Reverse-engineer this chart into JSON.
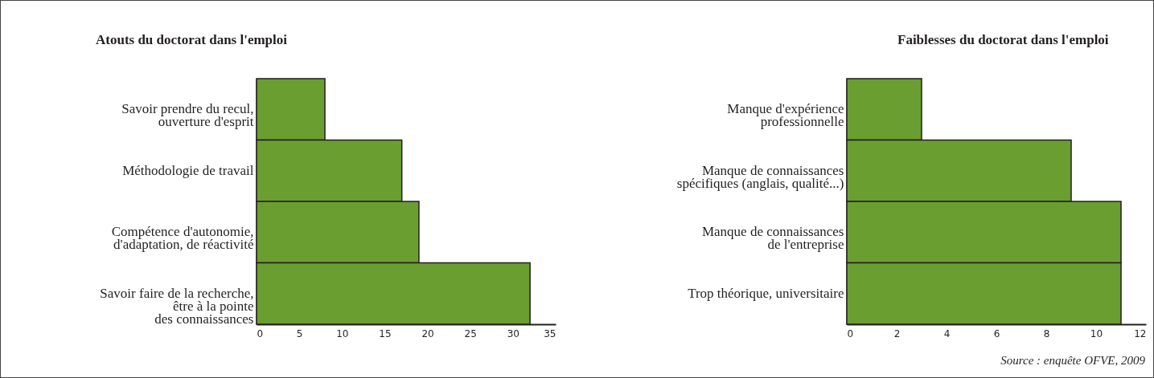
{
  "chart_data": [
    {
      "type": "bar",
      "orientation": "horizontal",
      "title": "Atouts du doctorat dans l'emploi",
      "categories": [
        "Savoir prendre du recul,\nouverture d'esprit",
        "Méthodologie de travail",
        "Compétence d'autonomie,\nd'adaptation, de réactivité",
        "Savoir faire de la recherche,\nêtre à la pointe\ndes connaissances"
      ],
      "values": [
        8,
        17,
        19,
        32
      ],
      "color": "#6b9e31",
      "xlim": [
        0,
        35
      ],
      "xticks": [
        0,
        5,
        10,
        15,
        20,
        25,
        30,
        35
      ]
    },
    {
      "type": "bar",
      "orientation": "horizontal",
      "title": "Faiblesses du doctorat dans l'emploi",
      "categories": [
        "Manque d'expérience\nprofessionnelle",
        "Manque de connaissances\nspécifiques (anglais, qualité...)",
        "Manque de connaissances\nde l'entreprise",
        "Trop théorique, universitaire"
      ],
      "values": [
        3,
        9,
        11,
        11
      ],
      "color": "#6b9e31",
      "xlim": [
        0,
        12
      ],
      "xticks": [
        0,
        2,
        4,
        6,
        8,
        10,
        12
      ],
      "annotations": [
        "Source : enquête OFVE, 2009"
      ]
    }
  ]
}
